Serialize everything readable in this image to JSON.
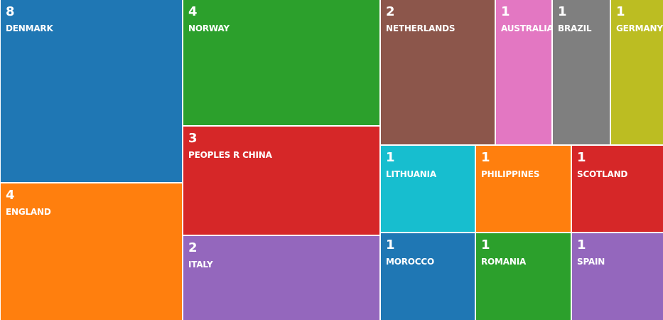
{
  "chart_data": {
    "type": "treemap",
    "title": "",
    "items": [
      {
        "label": "DENMARK",
        "value": 8,
        "color": "#1f77b4"
      },
      {
        "label": "ENGLAND",
        "value": 4,
        "color": "#ff7f0e"
      },
      {
        "label": "NORWAY",
        "value": 4,
        "color": "#2ca02c"
      },
      {
        "label": "PEOPLES R CHINA",
        "value": 3,
        "color": "#d62728"
      },
      {
        "label": "ITALY",
        "value": 2,
        "color": "#9467bd"
      },
      {
        "label": "NETHERLANDS",
        "value": 2,
        "color": "#8c564b"
      },
      {
        "label": "AUSTRALIA",
        "value": 1,
        "color": "#e377c2"
      },
      {
        "label": "BRAZIL",
        "value": 1,
        "color": "#7f7f7f"
      },
      {
        "label": "GERMANY",
        "value": 1,
        "color": "#bcbd22"
      },
      {
        "label": "LITHUANIA",
        "value": 1,
        "color": "#17becf"
      },
      {
        "label": "PHILIPPINES",
        "value": 1,
        "color": "#ff7f0e"
      },
      {
        "label": "SCOTLAND",
        "value": 1,
        "color": "#d62728"
      },
      {
        "label": "MOROCCO",
        "value": 1,
        "color": "#1f77b4"
      },
      {
        "label": "ROMANIA",
        "value": 1,
        "color": "#2ca02c"
      },
      {
        "label": "SPAIN",
        "value": 1,
        "color": "#9467bd"
      }
    ]
  }
}
